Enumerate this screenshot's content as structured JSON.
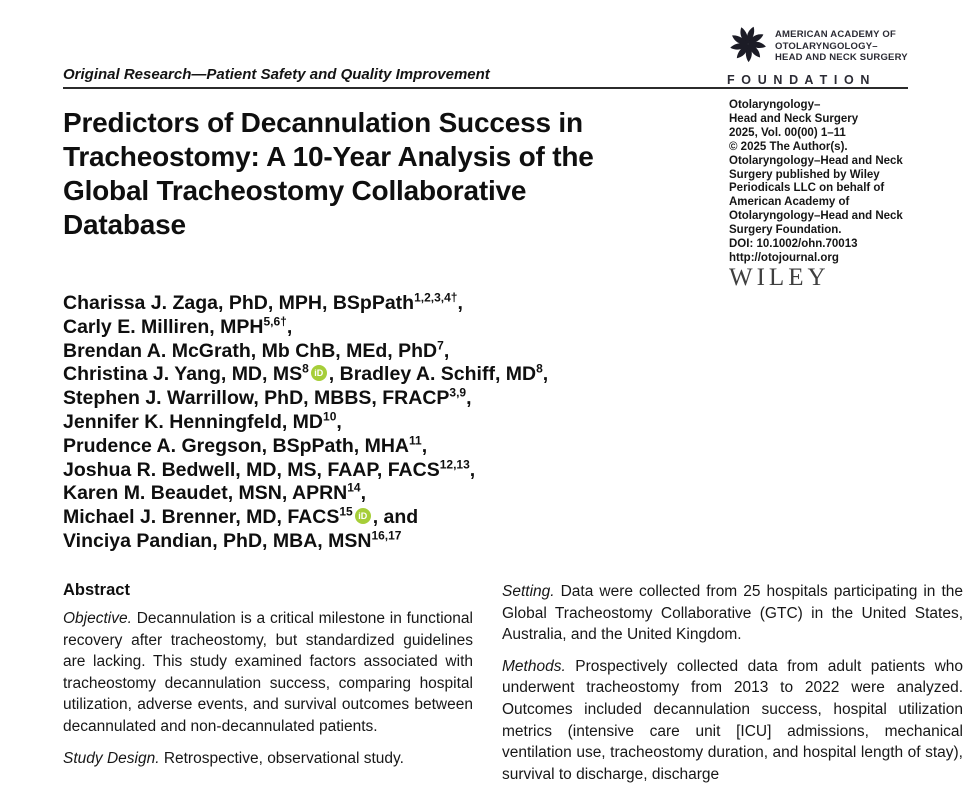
{
  "header": {
    "running_head": "Original Research—Patient Safety and Quality Improvement",
    "logo": {
      "line1": "AMERICAN ACADEMY OF",
      "line2": "OTOLARYNGOLOGY–",
      "line3": "HEAD AND NECK SURGERY",
      "foundation": "F O U N D A T I O N"
    }
  },
  "title": {
    "lines": [
      "Predictors of Decannulation Success in",
      "Tracheostomy: A 10-Year Analysis of the",
      "Global Tracheostomy Collaborative",
      "Database"
    ]
  },
  "journal_info": {
    "lines": [
      "Otolaryngology–",
      "Head and Neck Surgery",
      "2025, Vol. 00(00) 1–11",
      "© 2025 The Author(s).",
      "Otolaryngology–Head and Neck",
      "Surgery published by Wiley",
      "Periodicals LLC on behalf of",
      "American Academy of",
      "Otolaryngology–Head and Neck",
      "Surgery Foundation.",
      "DOI: 10.1002/ohn.70013",
      "http://otojournal.org"
    ],
    "publisher_mark": "WILEY"
  },
  "icons": {
    "orcid_label": "iD",
    "orcid_color": "#A6CE39",
    "swirl": "aao-hnsf-swirl"
  },
  "authors": {
    "lines": [
      [
        {
          "t": "Charissa J. Zaga, PhD, MPH, BSpPath",
          "s": "1,2,3,4†"
        },
        {
          "t": ","
        }
      ],
      [
        {
          "t": "Carly E. Milliren, MPH",
          "s": "5,6†"
        },
        {
          "t": ","
        }
      ],
      [
        {
          "t": "Brendan A. McGrath, Mb ChB, MEd, PhD",
          "s": "7"
        },
        {
          "t": ","
        }
      ],
      [
        {
          "t": "Christina J. Yang, MD, MS",
          "s": "8"
        },
        {
          "icon": "orcid"
        },
        {
          "t": ", Bradley A. Schiff, MD",
          "s": "8"
        },
        {
          "t": ","
        }
      ],
      [
        {
          "t": "Stephen J. Warrillow, PhD, MBBS, FRACP",
          "s": "3,9"
        },
        {
          "t": ","
        }
      ],
      [
        {
          "t": "Jennifer K. Henningfeld, MD",
          "s": "10"
        },
        {
          "t": ","
        }
      ],
      [
        {
          "t": "Prudence A. Gregson, BSpPath, MHA",
          "s": "11"
        },
        {
          "t": ","
        }
      ],
      [
        {
          "t": "Joshua R. Bedwell, MD, MS, FAAP, FACS",
          "s": "12,13"
        },
        {
          "t": ","
        }
      ],
      [
        {
          "t": "Karen M. Beaudet, MSN, APRN",
          "s": "14"
        },
        {
          "t": ","
        }
      ],
      [
        {
          "t": "Michael J. Brenner, MD, FACS",
          "s": "15"
        },
        {
          "icon": "orcid"
        },
        {
          "t": ", and"
        }
      ],
      [
        {
          "t": "Vinciya Pandian, PhD, MBA, MSN",
          "s": "16,17"
        }
      ]
    ]
  },
  "abstract": {
    "heading": "Abstract",
    "left_paragraphs": [
      {
        "lead": "Objective.",
        "text": "Decannulation is a critical milestone in functional recovery after tracheostomy, but standardized guidelines are lacking. This study examined factors associated with tracheostomy decannulation success, comparing hospital utilization, adverse events, and survival outcomes between decannulated and non-decannulated patients."
      },
      {
        "lead": "Study Design.",
        "text": "Retrospective, observational study."
      }
    ],
    "right_paragraphs": [
      {
        "lead": "Setting.",
        "text": "Data were collected from 25 hospitals participating in the Global Tracheostomy Collaborative (GTC) in the United States, Australia, and the United Kingdom."
      },
      {
        "lead": "Methods.",
        "text": "Prospectively collected data from adult patients who underwent tracheostomy from 2013 to 2022 were analyzed. Outcomes included decannulation success, hospital utilization metrics (intensive care unit [ICU] admissions, mechanical ventilation use, tracheostomy duration, and hospital length of stay), survival to discharge, discharge"
      }
    ]
  }
}
